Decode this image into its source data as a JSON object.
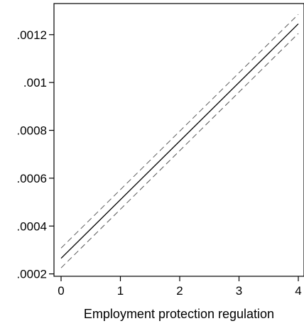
{
  "chart_data": {
    "type": "line",
    "title": "",
    "xlabel": "Employment protection regulation",
    "ylabel": "",
    "xlim": [
      0,
      4
    ],
    "ylim": [
      0.00019,
      0.00133
    ],
    "xticks": [
      {
        "value": 0,
        "label": "0"
      },
      {
        "value": 1,
        "label": "1"
      },
      {
        "value": 2,
        "label": "2"
      },
      {
        "value": 3,
        "label": "3"
      },
      {
        "value": 4,
        "label": "4"
      }
    ],
    "yticks": [
      {
        "value": 0.0002,
        "label": ".0002"
      },
      {
        "value": 0.0004,
        "label": ".0004"
      },
      {
        "value": 0.0006,
        "label": ".0006"
      },
      {
        "value": 0.0008,
        "label": ".0008"
      },
      {
        "value": 0.001,
        "label": ".001"
      },
      {
        "value": 0.0012,
        "label": ".0012"
      }
    ],
    "grid": false,
    "legend": "none",
    "series": [
      {
        "role": "estimate",
        "style": "solid",
        "color": "#000000",
        "x": [
          0,
          4
        ],
        "y": [
          0.000265,
          0.001245
        ]
      },
      {
        "role": "upper-ci",
        "style": "dashed",
        "color": "#555555",
        "x": [
          0,
          4
        ],
        "y": [
          0.000308,
          0.001285
        ]
      },
      {
        "role": "lower-ci",
        "style": "dashed",
        "color": "#555555",
        "x": [
          0,
          4
        ],
        "y": [
          0.000225,
          0.001205
        ]
      }
    ]
  }
}
